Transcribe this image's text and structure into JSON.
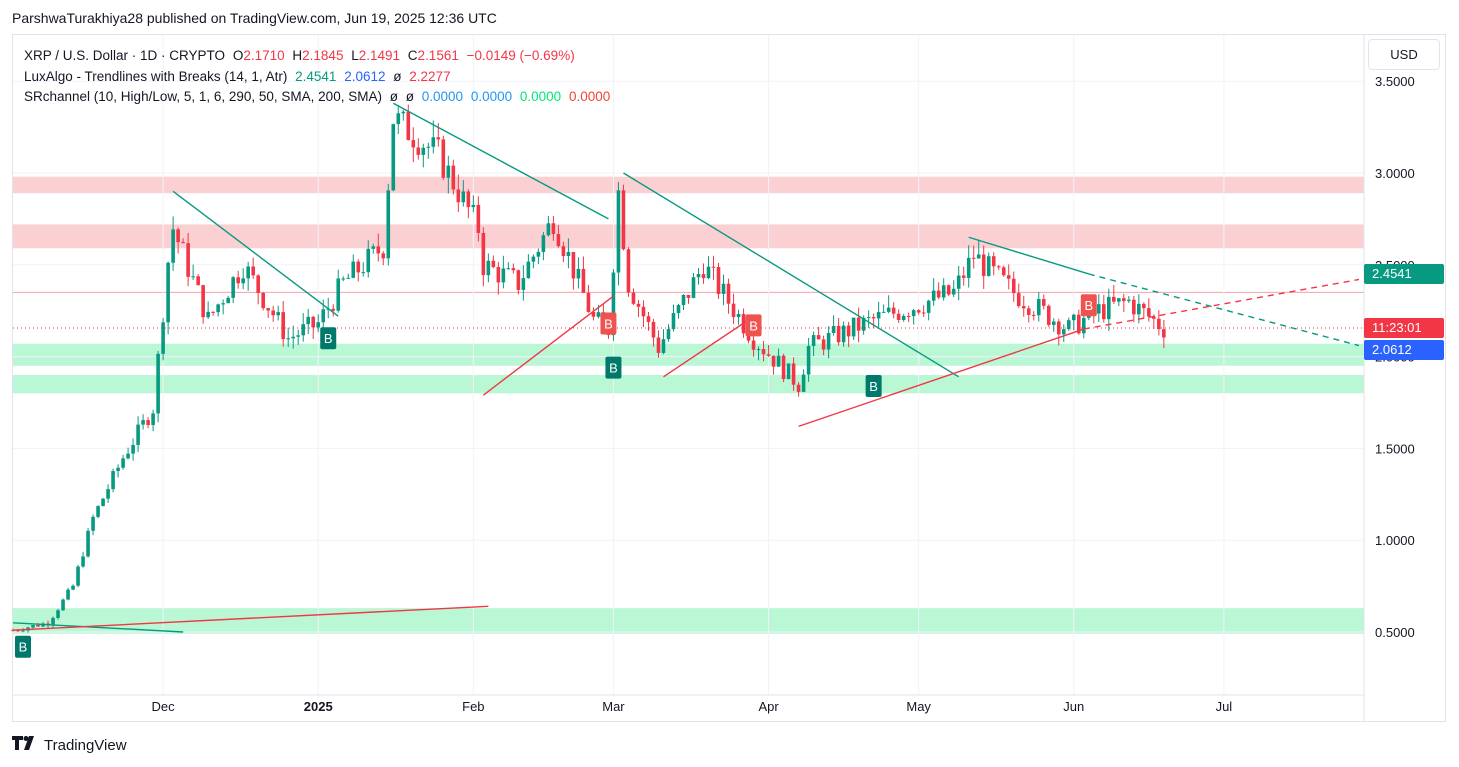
{
  "publisher_line": "ParshwaTurakhiya28 published on TradingView.com, Jun 19, 2025 12:36 UTC",
  "legend": {
    "row1": {
      "symbol": "XRP / U.S. Dollar · 1D · CRYPTO",
      "o_label": "O",
      "o": "2.1710",
      "h_label": "H",
      "h": "2.1845",
      "l_label": "L",
      "l": "2.1491",
      "c_label": "C",
      "c": "2.1561",
      "change": "−0.0149 (−0.69%)"
    },
    "row2": {
      "name": "LuxAlgo - Trendlines with Breaks (14, 1, Atr)",
      "v1": "2.4541",
      "v2": "2.0612",
      "v3_symbol": "ø",
      "v3": "2.2277"
    },
    "row3": {
      "name": "SRchannel (10, High/Low, 5, 1, 6, 290, 50, SMA, 200, SMA)",
      "s1": "ø",
      "s2": "ø",
      "v1": "0.0000",
      "v2": "0.0000",
      "v3": "0.0000",
      "v4": "0.0000"
    }
  },
  "currency_button": "USD",
  "price_tags": {
    "upper_trendline": "2.4541",
    "countdown": "11:23:01",
    "lower_trendline": "2.0612"
  },
  "brand": "TradingView",
  "colors": {
    "up": "#089981",
    "down": "#f23645",
    "resistance_zone": "#f7a1a8",
    "support_zone": "#2ee67f",
    "trendline_up": "#f23645",
    "trendline_down": "#089981"
  },
  "chart_data": {
    "type": "candlestick",
    "title": "XRP / U.S. Dollar · 1D · CRYPTO",
    "y_ticks": [
      "0.5000",
      "1.0000",
      "1.5000",
      "2.0000",
      "2.5000",
      "3.0000",
      "3.5000"
    ],
    "ylim": [
      0.2,
      3.7
    ],
    "x_ticks": [
      "Dec",
      "2025",
      "Feb",
      "Mar",
      "Apr",
      "May",
      "Jun",
      "Jul"
    ],
    "x_start": "2024-11-01",
    "x_end": "2025-07-29",
    "key_closes": [
      {
        "date": "2024-11-01",
        "close": 0.51
      },
      {
        "date": "2024-11-08",
        "close": 0.55
      },
      {
        "date": "2024-11-13",
        "close": 0.75
      },
      {
        "date": "2024-11-17",
        "close": 1.12
      },
      {
        "date": "2024-11-23",
        "close": 1.45
      },
      {
        "date": "2024-11-29",
        "close": 1.72
      },
      {
        "date": "2024-12-02",
        "close": 2.52
      },
      {
        "date": "2024-12-03",
        "close": 2.7
      },
      {
        "date": "2024-12-10",
        "close": 2.2
      },
      {
        "date": "2024-12-17",
        "close": 2.5
      },
      {
        "date": "2024-12-26",
        "close": 2.1
      },
      {
        "date": "2025-01-01",
        "close": 2.18
      },
      {
        "date": "2025-01-06",
        "close": 2.4
      },
      {
        "date": "2025-01-14",
        "close": 2.6
      },
      {
        "date": "2025-01-16",
        "close": 3.3
      },
      {
        "date": "2025-01-25",
        "close": 3.1
      },
      {
        "date": "2025-02-02",
        "close": 2.7
      },
      {
        "date": "2025-02-03",
        "close": 2.5
      },
      {
        "date": "2025-02-10",
        "close": 2.4
      },
      {
        "date": "2025-02-17",
        "close": 2.75
      },
      {
        "date": "2025-02-25",
        "close": 2.2
      },
      {
        "date": "2025-02-28",
        "close": 2.15
      },
      {
        "date": "2025-03-02",
        "close": 2.9
      },
      {
        "date": "2025-03-04",
        "close": 2.4
      },
      {
        "date": "2025-03-10",
        "close": 2.05
      },
      {
        "date": "2025-03-19",
        "close": 2.5
      },
      {
        "date": "2025-03-29",
        "close": 2.1
      },
      {
        "date": "2025-04-07",
        "close": 1.85
      },
      {
        "date": "2025-04-09",
        "close": 2.05
      },
      {
        "date": "2025-04-22",
        "close": 2.2
      },
      {
        "date": "2025-05-08",
        "close": 2.35
      },
      {
        "date": "2025-05-12",
        "close": 2.55
      },
      {
        "date": "2025-05-20",
        "close": 2.35
      },
      {
        "date": "2025-05-31",
        "close": 2.15
      },
      {
        "date": "2025-06-06",
        "close": 2.25
      },
      {
        "date": "2025-06-12",
        "close": 2.3
      },
      {
        "date": "2025-06-19",
        "close": 2.1561
      }
    ],
    "resistance_zones": [
      [
        2.89,
        2.98
      ],
      [
        2.59,
        2.72
      ]
    ],
    "support_zones": [
      [
        1.95,
        2.07
      ],
      [
        1.8,
        1.9
      ],
      [
        0.49,
        0.63
      ]
    ],
    "resistance_line": 2.35,
    "trendlines_down": [
      [
        [
          "2024-12-03",
          2.9
        ],
        [
          "2025-01-05",
          2.22
        ]
      ],
      [
        [
          "2025-01-16",
          3.38
        ],
        [
          "2025-02-28",
          2.75
        ]
      ],
      [
        [
          "2025-03-03",
          3.0
        ],
        [
          "2025-05-09",
          1.89
        ]
      ],
      [
        [
          "2025-05-11",
          2.65
        ],
        [
          "2025-06-04",
          2.45
        ]
      ],
      [
        [
          "2024-11-01",
          0.55
        ],
        [
          "2024-12-05",
          0.5
        ]
      ]
    ],
    "trendlines_down_projected": [
      [
        [
          "2025-06-04",
          2.45
        ],
        [
          "2025-07-28",
          2.06
        ]
      ]
    ],
    "trendlines_up": [
      [
        [
          "2025-02-03",
          1.79
        ],
        [
          "2025-03-01",
          2.33
        ]
      ],
      [
        [
          "2025-03-11",
          1.89
        ],
        [
          "2025-03-28",
          2.2
        ]
      ],
      [
        [
          "2025-04-07",
          1.62
        ],
        [
          "2025-06-03",
          2.15
        ]
      ],
      [
        [
          "2024-11-01",
          0.51
        ],
        [
          "2025-02-04",
          0.64
        ]
      ]
    ],
    "trendlines_up_projected": [
      [
        [
          "2025-06-03",
          2.15
        ],
        [
          "2025-07-28",
          2.42
        ]
      ]
    ],
    "break_labels": [
      {
        "date": "2024-11-03",
        "price": 0.42,
        "text": "B",
        "side": "bull"
      },
      {
        "date": "2025-01-03",
        "price": 2.1,
        "text": "B",
        "side": "bull"
      },
      {
        "date": "2025-02-28",
        "price": 2.18,
        "text": "B",
        "side": "bear"
      },
      {
        "date": "2025-03-01",
        "price": 1.94,
        "text": "B",
        "side": "bull"
      },
      {
        "date": "2025-03-29",
        "price": 2.17,
        "text": "B",
        "side": "bear"
      },
      {
        "date": "2025-04-22",
        "price": 1.84,
        "text": "B",
        "side": "bull"
      },
      {
        "date": "2025-06-04",
        "price": 2.28,
        "text": "B",
        "side": "bear"
      }
    ],
    "last_close": 2.1561
  }
}
